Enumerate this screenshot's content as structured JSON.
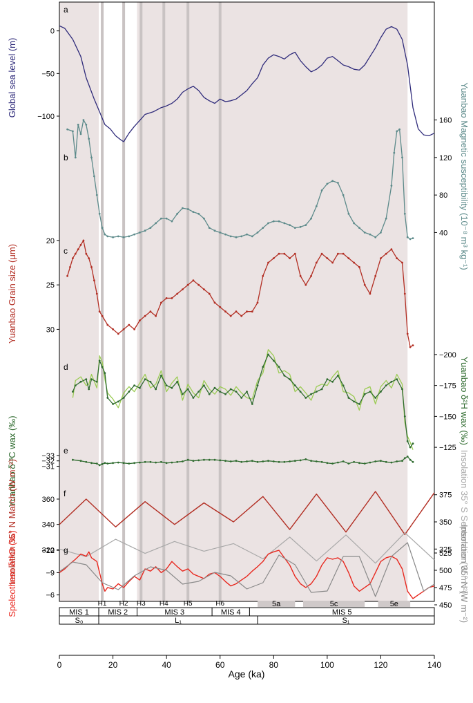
{
  "figure": {
    "xaxis": {
      "label": "Age (ka)",
      "ticks": [
        0,
        20,
        40,
        60,
        80,
        100,
        120,
        140
      ],
      "range": [
        0,
        140
      ]
    },
    "shading_color": "#ebe3e3",
    "hevent_color": "#c9c3c3",
    "shaded_intervals_ka": [
      [
        0,
        14.7
      ],
      [
        29,
        74
      ],
      [
        74,
        130
      ]
    ],
    "h_events": [
      {
        "label": "H1",
        "age": 16
      },
      {
        "label": "H2",
        "age": 24
      },
      {
        "label": "H3",
        "age": 30.5
      },
      {
        "label": "H4",
        "age": 39
      },
      {
        "label": "H5",
        "age": 48
      },
      {
        "label": "H6",
        "age": 60
      }
    ],
    "mis_stages": [
      {
        "label": "MIS 1",
        "from": 0,
        "to": 14.7
      },
      {
        "label": "MIS 2",
        "from": 14.7,
        "to": 29
      },
      {
        "label": "MIS 3",
        "from": 29,
        "to": 57
      },
      {
        "label": "MIS 4",
        "from": 57,
        "to": 71
      },
      {
        "label": "MIS 5",
        "from": 71,
        "to": 140
      }
    ],
    "substages": [
      {
        "label": "5a",
        "from": 74,
        "to": 88
      },
      {
        "label": "5c",
        "from": 91,
        "to": 114
      },
      {
        "label": "5e",
        "from": 119,
        "to": 131
      }
    ],
    "soil_units": [
      {
        "label": "S₀",
        "from": 0,
        "to": 14.7
      },
      {
        "label": "L₁",
        "from": 14.7,
        "to": 74
      },
      {
        "label": "S₁",
        "from": 74,
        "to": 140
      }
    ]
  },
  "chart_data": [
    {
      "panel": "a",
      "type": "line",
      "color": "#2e2a7a",
      "ylabel": "Global sea level (m)",
      "yticks": [
        0,
        -50,
        -100
      ],
      "ylim": [
        -130,
        20
      ],
      "x": [
        0,
        2,
        5,
        8,
        10,
        13,
        15,
        17,
        19,
        21,
        23,
        24,
        26,
        28,
        30,
        32,
        35,
        38,
        40,
        42,
        44,
        46,
        48,
        50,
        52,
        54,
        56,
        58,
        60,
        62,
        64,
        66,
        68,
        70,
        72,
        74,
        76,
        78,
        80,
        82,
        84,
        86,
        88,
        90,
        92,
        94,
        96,
        98,
        100,
        102,
        104,
        106,
        108,
        110,
        112,
        114,
        116,
        118,
        120,
        122,
        124,
        126,
        128,
        130,
        132,
        134,
        136,
        138,
        140
      ],
      "values": [
        6,
        3,
        -10,
        -30,
        -55,
        -80,
        -95,
        -110,
        -115,
        -123,
        -128,
        -130,
        -120,
        -112,
        -105,
        -98,
        -95,
        -90,
        -88,
        -85,
        -80,
        -72,
        -68,
        -65,
        -70,
        -78,
        -82,
        -85,
        -80,
        -83,
        -82,
        -80,
        -75,
        -70,
        -62,
        -55,
        -40,
        -32,
        -28,
        -30,
        -33,
        -28,
        -25,
        -35,
        -42,
        -48,
        -45,
        -40,
        -32,
        -30,
        -35,
        -40,
        -42,
        -45,
        -46,
        -40,
        -30,
        -20,
        -8,
        2,
        5,
        2,
        -10,
        -40,
        -90,
        -115,
        -122,
        -123,
        -120
      ]
    },
    {
      "panel": "b",
      "type": "line",
      "color": "#5c8a8a",
      "ylabel": "Yuanbao Magnetic susceptibility (10⁻⁸ m³ kg⁻¹)",
      "yticks": [
        40,
        80,
        120,
        160
      ],
      "ylim": [
        30,
        170
      ],
      "x": [
        3,
        5,
        6,
        7,
        8,
        9,
        10,
        11,
        12,
        13,
        14,
        15,
        16,
        17,
        18,
        20,
        22,
        24,
        26,
        28,
        30,
        32,
        34,
        36,
        38,
        40,
        42,
        44,
        46,
        48,
        50,
        52,
        54,
        56,
        58,
        60,
        62,
        64,
        66,
        68,
        70,
        72,
        74,
        76,
        78,
        80,
        82,
        84,
        86,
        88,
        90,
        92,
        94,
        96,
        98,
        100,
        102,
        104,
        106,
        108,
        110,
        112,
        114,
        116,
        118,
        120,
        122,
        124,
        125,
        126,
        127,
        128,
        129,
        130,
        131,
        132
      ],
      "values": [
        150,
        148,
        120,
        155,
        145,
        160,
        155,
        140,
        120,
        100,
        80,
        60,
        45,
        38,
        36,
        35,
        36,
        35,
        36,
        38,
        40,
        42,
        45,
        50,
        55,
        55,
        52,
        60,
        66,
        65,
        62,
        60,
        55,
        45,
        42,
        40,
        38,
        36,
        35,
        36,
        38,
        36,
        40,
        45,
        50,
        52,
        52,
        50,
        48,
        45,
        46,
        48,
        55,
        68,
        85,
        92,
        95,
        93,
        80,
        60,
        50,
        45,
        40,
        38,
        35,
        40,
        55,
        90,
        125,
        148,
        150,
        120,
        60,
        35,
        33,
        34
      ]
    },
    {
      "panel": "c",
      "type": "line",
      "color": "#b22d22",
      "ylabel": "Yuanbao Grain size (μm)",
      "yticks": [
        20,
        25,
        30
      ],
      "ylim": [
        33,
        19
      ],
      "ytick_direction": "inverted",
      "x": [
        3,
        4,
        5,
        6,
        7,
        8,
        9,
        10,
        11,
        12,
        13,
        14,
        15,
        16,
        18,
        20,
        22,
        24,
        26,
        28,
        30,
        32,
        34,
        36,
        38,
        40,
        42,
        44,
        46,
        48,
        50,
        52,
        54,
        56,
        58,
        60,
        62,
        64,
        66,
        68,
        70,
        72,
        74,
        76,
        78,
        80,
        82,
        84,
        86,
        88,
        90,
        92,
        94,
        96,
        98,
        100,
        102,
        104,
        106,
        108,
        110,
        112,
        114,
        116,
        118,
        120,
        122,
        124,
        126,
        128,
        129,
        130,
        131,
        132
      ],
      "values": [
        24,
        23,
        22,
        21.5,
        21,
        20.5,
        20,
        21.5,
        22,
        23,
        24.5,
        26,
        28,
        28.5,
        29.5,
        30,
        30.5,
        30,
        29.5,
        30,
        29,
        28.5,
        28,
        28.5,
        27,
        26.5,
        26.5,
        26,
        25.5,
        25,
        24.5,
        25,
        25.5,
        26,
        27,
        27.5,
        28,
        28.5,
        28,
        28.5,
        28,
        28,
        27,
        24,
        22.5,
        22,
        21.5,
        21.5,
        22,
        21.5,
        24,
        25,
        24,
        22.5,
        21.5,
        22,
        22.5,
        21.5,
        21.5,
        22,
        22.5,
        23,
        25,
        26,
        24,
        22,
        21.5,
        21,
        22,
        22.5,
        26,
        30.5,
        32,
        31.8
      ]
    },
    {
      "panel": "d",
      "type": "line",
      "color": "#2f6b2f",
      "band_color": "#9ccc55",
      "ylabel": "Yuanbao δ²H wax (‰)",
      "yticks": [
        -200,
        -175,
        -150,
        -125
      ],
      "ylim": [
        -115,
        -210
      ],
      "x": [
        5,
        6,
        8,
        10,
        11,
        12,
        14,
        15,
        16,
        17,
        18,
        20,
        22,
        24,
        26,
        28,
        30,
        32,
        34,
        36,
        38,
        40,
        42,
        44,
        46,
        48,
        50,
        52,
        54,
        56,
        58,
        60,
        62,
        64,
        66,
        68,
        70,
        72,
        74,
        76,
        78,
        80,
        82,
        84,
        86,
        88,
        90,
        92,
        94,
        96,
        98,
        100,
        102,
        104,
        106,
        108,
        110,
        112,
        114,
        116,
        118,
        120,
        122,
        124,
        126,
        128,
        129,
        130,
        131,
        132
      ],
      "values": [
        -170,
        -175,
        -178,
        -180,
        -172,
        -180,
        -178,
        -195,
        -190,
        -185,
        -165,
        -160,
        -162,
        -165,
        -170,
        -175,
        -173,
        -180,
        -178,
        -172,
        -183,
        -175,
        -173,
        -178,
        -168,
        -172,
        -165,
        -170,
        -175,
        -168,
        -173,
        -170,
        -168,
        -172,
        -170,
        -165,
        -170,
        -160,
        -175,
        -190,
        -200,
        -195,
        -190,
        -183,
        -180,
        -175,
        -170,
        -165,
        -168,
        -170,
        -172,
        -180,
        -178,
        -183,
        -175,
        -165,
        -162,
        -160,
        -168,
        -170,
        -165,
        -170,
        -175,
        -178,
        -180,
        -172,
        -150,
        -130,
        -125,
        -128
      ]
    },
    {
      "panel": "e",
      "type": "line",
      "color": "#2f6b2f",
      "ylabel": "Yuanbao δ¹³C wax (‰)",
      "yticks": [
        -33,
        -32,
        -31
      ],
      "ylim": [
        -30.3,
        -33.5
      ],
      "x": [
        5,
        8,
        10,
        12,
        14,
        15,
        16,
        17,
        18,
        20,
        22,
        24,
        26,
        28,
        30,
        32,
        34,
        36,
        38,
        40,
        42,
        44,
        46,
        48,
        50,
        52,
        54,
        56,
        58,
        60,
        62,
        64,
        66,
        68,
        70,
        72,
        74,
        76,
        78,
        80,
        82,
        84,
        86,
        88,
        90,
        92,
        94,
        96,
        98,
        100,
        102,
        104,
        106,
        108,
        110,
        112,
        114,
        116,
        118,
        120,
        122,
        124,
        126,
        128,
        129,
        130,
        131,
        132
      ],
      "values": [
        -32.2,
        -32,
        -31.8,
        -31.6,
        -31.5,
        -31.2,
        -31.4,
        -31.6,
        -31.5,
        -31.6,
        -31.7,
        -31.6,
        -31.5,
        -31.6,
        -31.7,
        -31.8,
        -31.8,
        -31.7,
        -31.8,
        -31.6,
        -31.7,
        -31.8,
        -31.9,
        -32.2,
        -32,
        -32.1,
        -32.2,
        -32.2,
        -32.2,
        -32.1,
        -32,
        -31.9,
        -32,
        -31.8,
        -31.9,
        -32,
        -31.8,
        -31.9,
        -32,
        -31.9,
        -31.8,
        -31.8,
        -31.9,
        -32,
        -32.1,
        -32.3,
        -32,
        -31.9,
        -31.8,
        -31.6,
        -31.5,
        -31.7,
        -31.9,
        -31.5,
        -31.8,
        -31.6,
        -31.5,
        -31.7,
        -31.9,
        -32,
        -31.8,
        -31.7,
        -31.9,
        -32,
        -32.5,
        -32.8,
        -32.2,
        -31.8
      ]
    },
    {
      "panel": "f",
      "type": "line",
      "left_ylabel": "Insolation 35° N March (W m⁻²)",
      "left_yticks": [
        320,
        340,
        360
      ],
      "left_ylim": [
        312,
        372
      ],
      "right_ylabel": "Insolation 35° S September (W m⁻²)",
      "right_yticks": [
        325,
        350,
        375
      ],
      "right_ylim": [
        315,
        385
      ],
      "series": [
        {
          "color": "#b22d22",
          "x": [
            0,
            10,
            21,
            32,
            43,
            54,
            65,
            76,
            86,
            96,
            107,
            118,
            129,
            140
          ],
          "values": [
            340,
            360,
            338,
            358,
            340,
            357,
            342,
            362,
            336,
            364,
            334,
            366,
            332,
            365
          ]
        },
        {
          "color": "#a8a8a8",
          "x": [
            0,
            10,
            21,
            32,
            43,
            54,
            65,
            76,
            86,
            96,
            107,
            118,
            129,
            140
          ],
          "values": [
            325,
            318,
            334,
            321,
            332,
            323,
            330,
            316,
            336,
            314,
            338,
            312,
            340,
            315
          ]
        }
      ]
    },
    {
      "panel": "g",
      "type": "line",
      "left_ylabel": "Speleothem δ¹⁸O (‰)",
      "left_yticks": [
        -12,
        -9,
        -6
      ],
      "left_ylim": [
        -4.2,
        -13.5
      ],
      "right_ylabel": "Insolation 35° N (W m⁻²)",
      "right_yticks": [
        450,
        475,
        500,
        525
      ],
      "right_ylim": [
        445,
        545
      ],
      "series": [
        {
          "color": "#e8281f",
          "x": [
            0,
            2,
            4,
            6,
            8,
            10,
            11,
            12,
            14,
            15,
            16,
            17,
            18,
            20,
            22,
            24,
            26,
            28,
            30,
            32,
            34,
            36,
            38,
            40,
            42,
            44,
            46,
            48,
            50,
            52,
            54,
            56,
            58,
            60,
            62,
            64,
            66,
            68,
            70,
            72,
            74,
            76,
            78,
            80,
            82,
            84,
            86,
            88,
            90,
            92,
            94,
            96,
            98,
            100,
            102,
            104,
            106,
            108,
            110,
            112,
            114,
            116,
            118,
            120,
            122,
            124,
            126,
            128,
            130,
            132,
            134,
            136,
            138,
            140
          ],
          "values": [
            -9,
            -9.5,
            -10.2,
            -10.8,
            -11.5,
            -11.2,
            -11.8,
            -11,
            -10.5,
            -9,
            -7.5,
            -6.5,
            -7,
            -6.8,
            -7.5,
            -7,
            -7.8,
            -8.5,
            -8,
            -9.5,
            -9.2,
            -9.8,
            -9,
            -9.5,
            -10.5,
            -9.8,
            -9.2,
            -9.5,
            -8.8,
            -8.5,
            -8.2,
            -8.8,
            -9,
            -8.5,
            -7.8,
            -7.2,
            -7.5,
            -8,
            -8.5,
            -9.2,
            -9.8,
            -10.5,
            -11.5,
            -11.8,
            -12,
            -11,
            -10,
            -8.5,
            -7.5,
            -7,
            -7.5,
            -8.5,
            -10,
            -11,
            -10.8,
            -11,
            -10.5,
            -9,
            -7.2,
            -6.5,
            -7,
            -7.5,
            -9,
            -10.5,
            -11,
            -11.2,
            -10.8,
            -9.5,
            -6.5,
            -5.5,
            -6,
            -6.5,
            -7,
            -7.2
          ]
        },
        {
          "color": "#8a8a8a",
          "x": [
            0,
            5,
            10,
            16,
            22,
            28,
            34,
            40,
            46,
            52,
            58,
            64,
            70,
            76,
            82,
            88,
            94,
            100,
            106,
            112,
            118,
            124,
            130,
            136,
            140
          ],
          "values": [
            498,
            512,
            508,
            482,
            472,
            492,
            505,
            500,
            480,
            484,
            497,
            492,
            473,
            482,
            522,
            508,
            468,
            470,
            520,
            520,
            462,
            520,
            540,
            470,
            480
          ]
        }
      ]
    }
  ]
}
